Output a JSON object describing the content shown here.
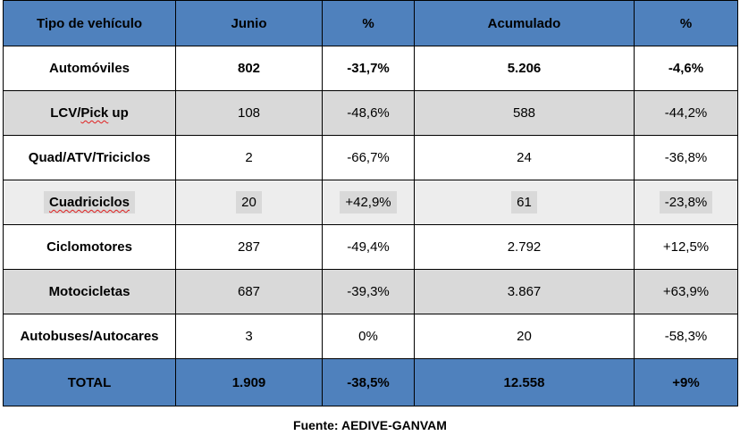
{
  "table": {
    "headers": [
      "Tipo de vehículo",
      "Junio",
      "%",
      "Acumulado",
      "%"
    ],
    "rows": [
      [
        "Automóviles",
        "802",
        "-31,7%",
        "5.206",
        "-4,6%"
      ],
      [
        "LCV/Pick up",
        "108",
        "-48,6%",
        "588",
        "-44,2%"
      ],
      [
        "Quad/ATV/Triciclos",
        "2",
        "-66,7%",
        "24",
        "-36,8%"
      ],
      [
        "Cuadriciclos",
        "20",
        "+42,9%",
        "61",
        "-23,8%"
      ],
      [
        "Ciclomotores",
        "287",
        "-49,4%",
        "2.792",
        "+12,5%"
      ],
      [
        "Motocicletas",
        "687",
        "-39,3%",
        "3.867",
        "+63,9%"
      ],
      [
        "Autobuses/Autocares",
        "3",
        "0%",
        "20",
        "-58,3%"
      ]
    ],
    "total": [
      "TOTAL",
      "1.909",
      "-38,5%",
      "12.558",
      "+9%"
    ]
  },
  "source": "Fuente: AEDIVE-GANVAM",
  "colors": {
    "header_bg": "#4f81bd",
    "shaded_row_bg": "#d9d9d9"
  }
}
